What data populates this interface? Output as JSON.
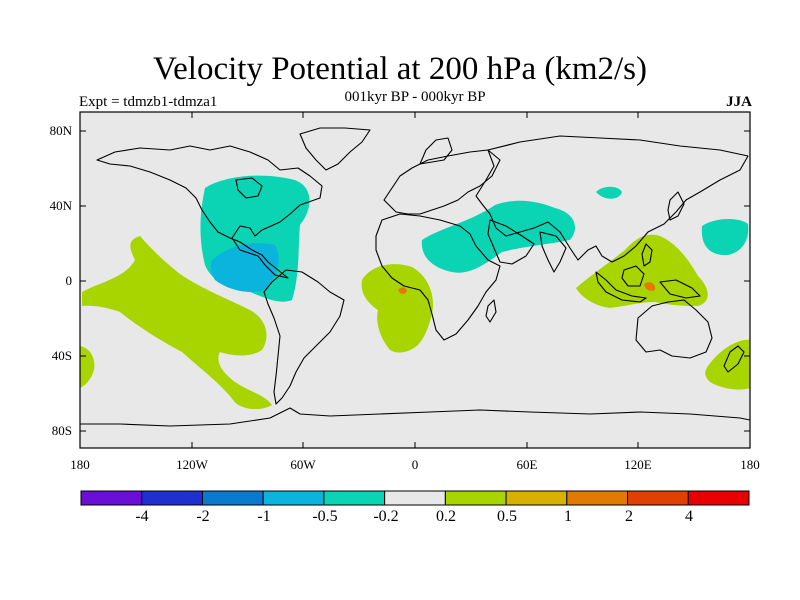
{
  "header": {
    "title": "Velocity Potential at 200 hPa (km2/s)",
    "subtitle": "001kyr BP - 000kyr BP",
    "left_label": "Expt = tdmzb1-tdmza1",
    "right_label": "JJA"
  },
  "map": {
    "projection": "cylindrical-equidistant",
    "lon_range": [
      -180,
      180
    ],
    "lat_range": [
      -90,
      90
    ],
    "background_color": "#e8e8e8",
    "lat_ticks": [
      "80N",
      "40N",
      "0",
      "40S",
      "80S"
    ],
    "lon_ticks": [
      "180",
      "120W",
      "60W",
      "0",
      "60E",
      "120E",
      "180"
    ]
  },
  "colorbar": {
    "colors": [
      "#6a0fd8",
      "#2030d0",
      "#0a7ad0",
      "#0ab4dd",
      "#0ad4b4",
      "#e8e8e8",
      "#a8d400",
      "#d8b000",
      "#e07a00",
      "#e04000",
      "#e80000"
    ],
    "labels": [
      "-4",
      "-2",
      "-1",
      "-0.5",
      "-0.2",
      "0.2",
      "0.5",
      "1",
      "2",
      "4"
    ]
  }
}
